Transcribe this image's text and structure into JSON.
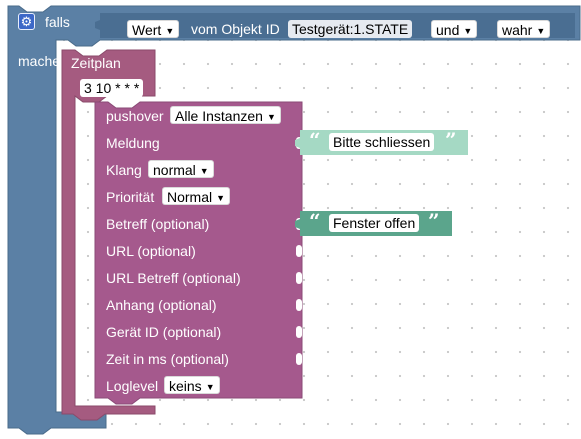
{
  "if_block": {
    "label_if": "falls",
    "label_do": "mache",
    "condition": {
      "property": "Wert",
      "of_object_label": "vom Objekt ID",
      "object_id": "Testgerät:1.STATE",
      "operator": "und",
      "value": "wahr"
    }
  },
  "schedule_block": {
    "label": "Zeitplan",
    "cron": "3 10 * * *"
  },
  "pushover_block": {
    "title": "pushover",
    "instance": "Alle Instanzen",
    "rows": {
      "message": "Meldung",
      "sound": "Klang",
      "sound_value": "normal",
      "priority": "Priorität",
      "priority_value": "Normal",
      "subject": "Betreff (optional)",
      "url": "URL (optional)",
      "url_subject": "URL Betreff (optional)",
      "attachment": "Anhang (optional)",
      "device": "Gerät ID (optional)",
      "time": "Zeit in ms (optional)",
      "loglevel": "Loglevel",
      "loglevel_value": "keins"
    }
  },
  "text_blocks": {
    "message_text": "Bitte schliessen",
    "subject_text": "Fenster offen",
    "open_quote": "“",
    "close_quote": "”"
  },
  "icons": {
    "settings": "gear-icon",
    "dropdown": "triangle-down-icon"
  },
  "colors": {
    "logic_block": "#5b80a5",
    "logic_input": "#4a6e92",
    "schedule_block": "#a55b80",
    "pushover_block": "#a5598d",
    "text_block_light": "#a5d9c4",
    "text_block": "#5ba58c",
    "workspace_dots": "#c9c9c9"
  }
}
